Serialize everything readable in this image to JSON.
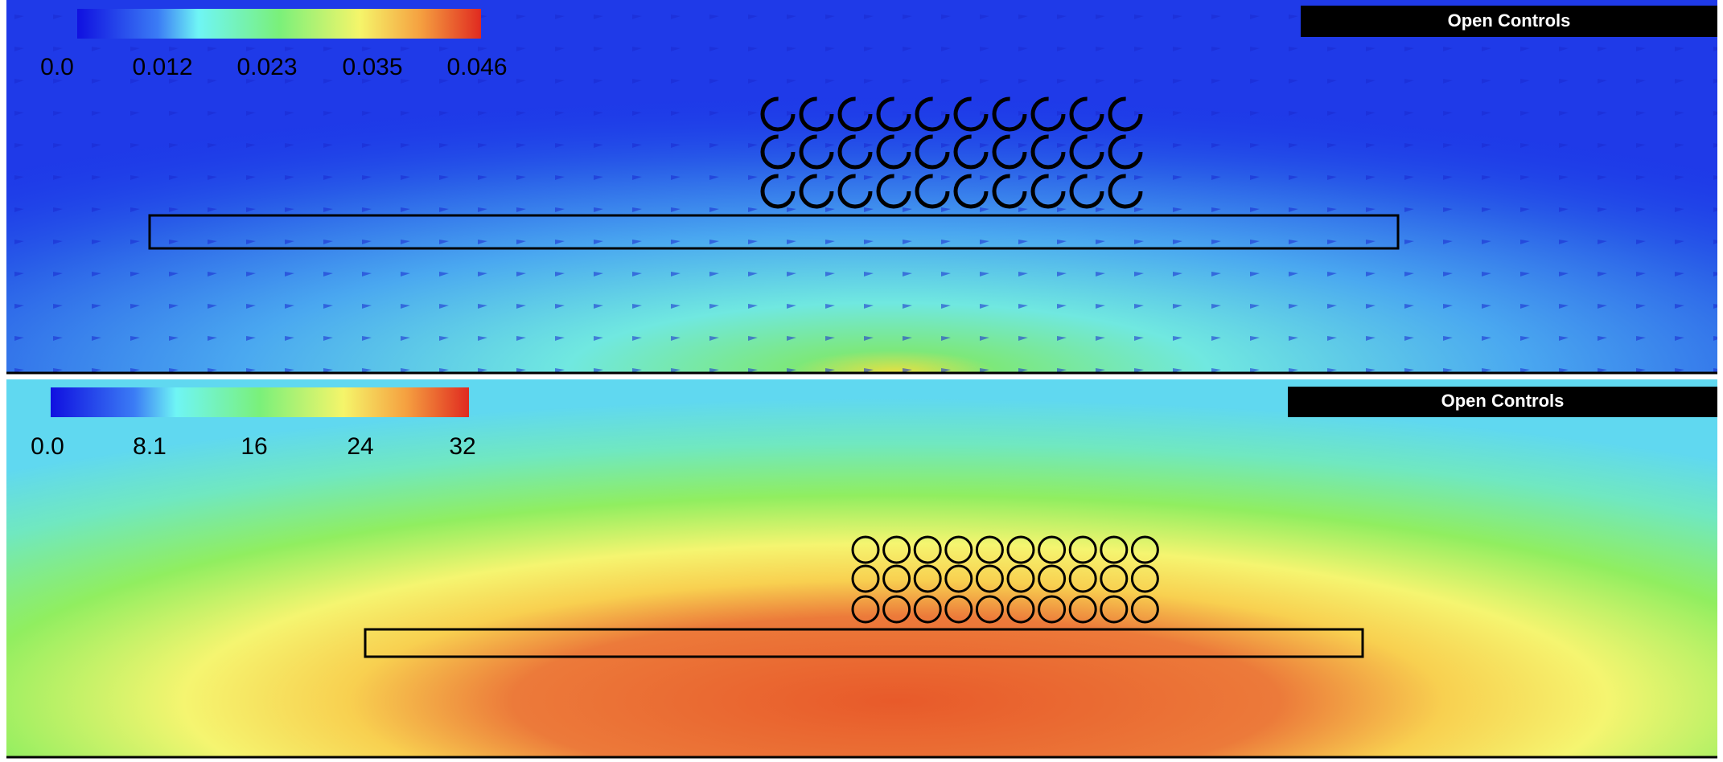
{
  "panels": [
    {
      "colorbar_labels": [
        "0.0",
        "0.012",
        "0.023",
        "0.035",
        "0.046"
      ],
      "button": "Open Controls"
    },
    {
      "colorbar_labels": [
        "0.0",
        "8.1",
        "16",
        "24",
        "32"
      ],
      "button": "Open Controls"
    }
  ]
}
